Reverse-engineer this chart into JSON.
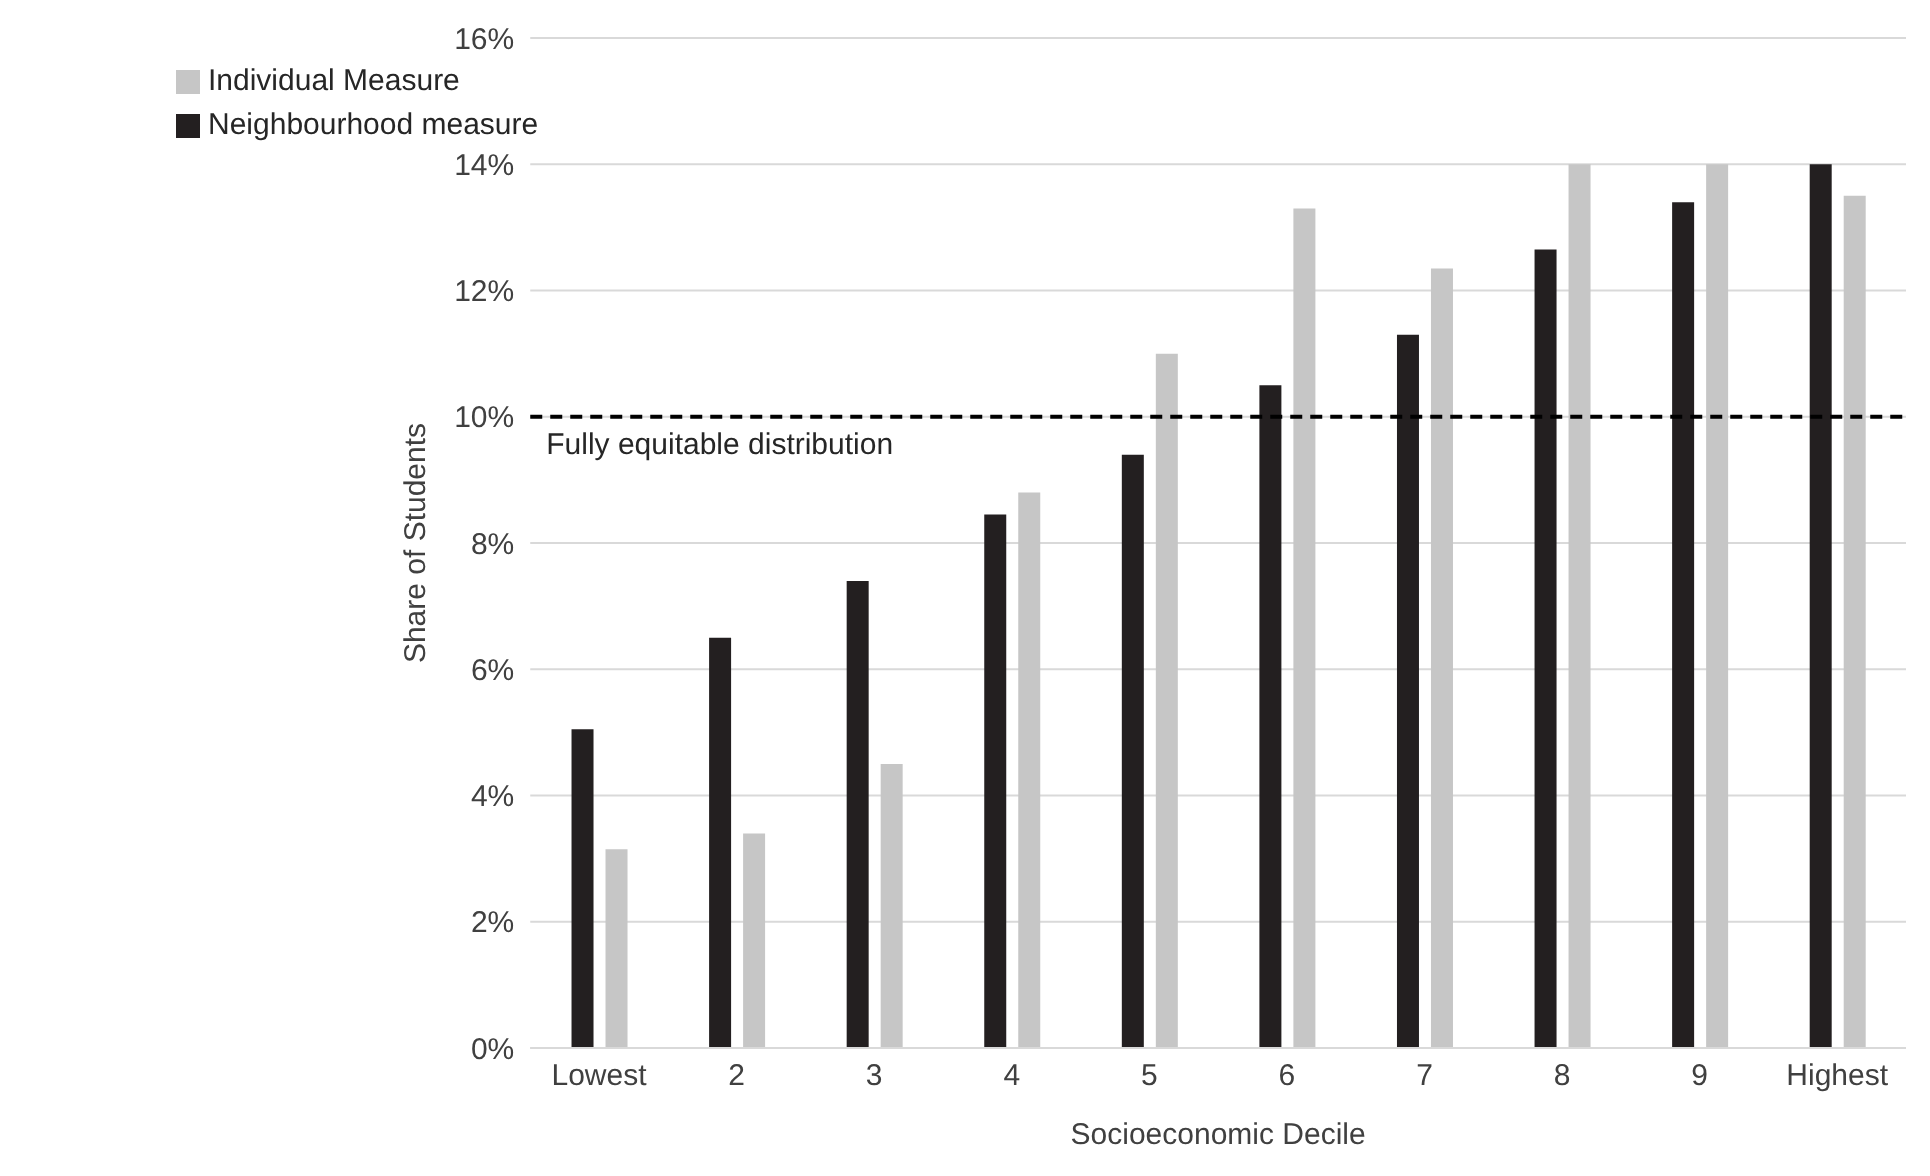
{
  "chart_data": {
    "type": "bar",
    "xlabel": "Socioeconomic Decile",
    "ylabel": "Share of Students",
    "categories": [
      "Lowest",
      "2",
      "3",
      "4",
      "5",
      "6",
      "7",
      "8",
      "9",
      "Highest"
    ],
    "series": [
      {
        "name": "Neighbourhood measure",
        "color": "#231f20",
        "values": [
          5.05,
          6.5,
          7.4,
          8.45,
          9.4,
          10.5,
          11.3,
          12.65,
          13.4,
          14.0
        ]
      },
      {
        "name": "Individual Measure",
        "color": "#c6c6c6",
        "values": [
          3.15,
          3.4,
          4.5,
          8.8,
          11.0,
          13.3,
          12.35,
          14.0,
          14.0,
          13.5
        ]
      }
    ],
    "ylim": [
      0,
      16
    ],
    "yticks": [
      {
        "value": 0,
        "label": "0%"
      },
      {
        "value": 2,
        "label": "2%"
      },
      {
        "value": 4,
        "label": "4%"
      },
      {
        "value": 6,
        "label": "6%"
      },
      {
        "value": 8,
        "label": "8%"
      },
      {
        "value": 10,
        "label": "10%"
      },
      {
        "value": 12,
        "label": "12%"
      },
      {
        "value": 14,
        "label": "14%"
      },
      {
        "value": 16,
        "label": "16%"
      }
    ],
    "grid": "y",
    "legend": "top left",
    "ref_lines": [
      {
        "axis": "y",
        "value": 10,
        "label": "Fully equitable distribution",
        "color": "#000000",
        "line_style": "dashed"
      }
    ]
  }
}
